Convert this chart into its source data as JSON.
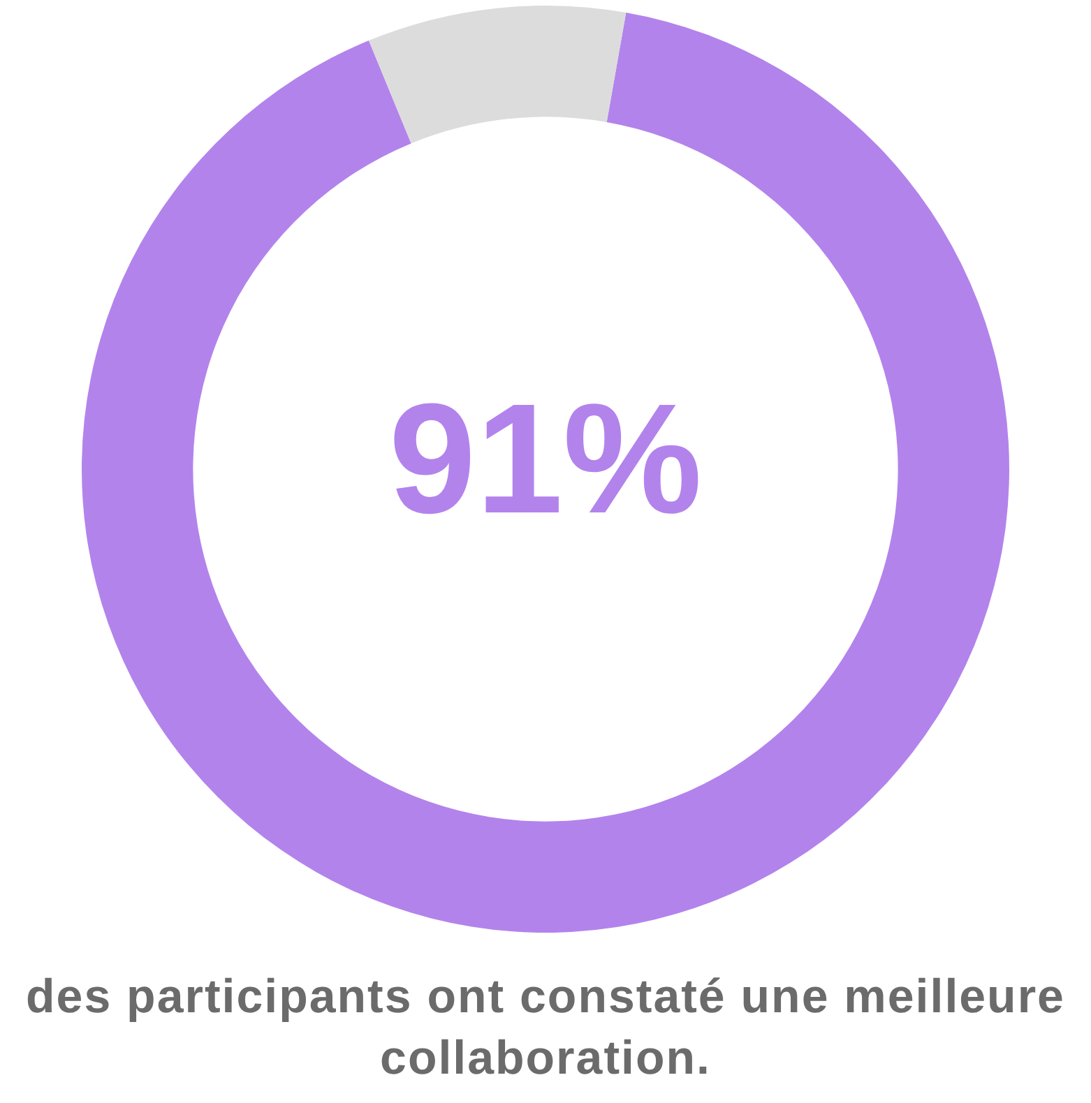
{
  "chart_data": {
    "type": "donut",
    "categories": [
      null,
      null
    ],
    "values": [
      91,
      9
    ],
    "colors": [
      "#b383ec",
      "#dcdcdc"
    ],
    "value_labels": [
      "91%",
      null
    ],
    "legend": false,
    "annotations": [
      "des participants ont constaté une meilleure collaboration."
    ]
  }
}
